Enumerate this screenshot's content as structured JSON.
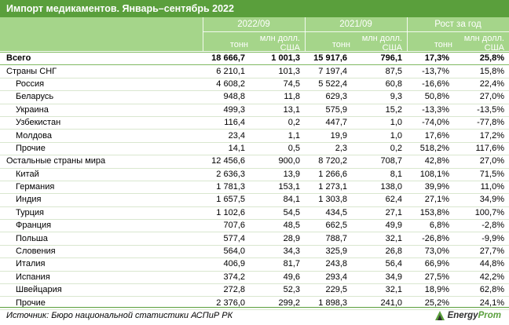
{
  "title": "Импорт медикаментов. Январь–сентябрь 2022",
  "header": {
    "groups": [
      "2022/09",
      "2021/09",
      "Рост за год"
    ],
    "units": {
      "tonnes": "тонн",
      "mln_line1": "млн долл.",
      "mln_line2": "США"
    }
  },
  "rows": [
    {
      "label": "Всего",
      "v": [
        "18 666,7",
        "1 001,3",
        "15 917,6",
        "796,1",
        "17,3%",
        "25,8%"
      ],
      "style": "bold"
    },
    {
      "label": "Страны СНГ",
      "v": [
        "6 210,1",
        "101,3",
        "7 197,4",
        "87,5",
        "-13,7%",
        "15,8%"
      ],
      "style": "lvl1"
    },
    {
      "label": "Россия",
      "v": [
        "4 608,2",
        "74,5",
        "5 522,4",
        "60,8",
        "-16,6%",
        "22,4%"
      ],
      "style": "lvl2"
    },
    {
      "label": "Беларусь",
      "v": [
        "948,8",
        "11,8",
        "629,3",
        "9,3",
        "50,8%",
        "27,0%"
      ],
      "style": "lvl2"
    },
    {
      "label": "Украина",
      "v": [
        "499,3",
        "13,1",
        "575,9",
        "15,2",
        "-13,3%",
        "-13,5%"
      ],
      "style": "lvl2"
    },
    {
      "label": "Узбекистан",
      "v": [
        "116,4",
        "0,2",
        "447,7",
        "1,0",
        "-74,0%",
        "-77,8%"
      ],
      "style": "lvl2"
    },
    {
      "label": "Молдова",
      "v": [
        "23,4",
        "1,1",
        "19,9",
        "1,0",
        "17,6%",
        "17,2%"
      ],
      "style": "lvl2"
    },
    {
      "label": "Прочие",
      "v": [
        "14,1",
        "0,5",
        "2,3",
        "0,2",
        "518,2%",
        "117,6%"
      ],
      "style": "lvl2"
    },
    {
      "label": "Остальные страны мира",
      "v": [
        "12 456,6",
        "900,0",
        "8 720,2",
        "708,7",
        "42,8%",
        "27,0%"
      ],
      "style": "lvl1"
    },
    {
      "label": "Китай",
      "v": [
        "2 636,3",
        "13,9",
        "1 266,6",
        "8,1",
        "108,1%",
        "71,5%"
      ],
      "style": "lvl2"
    },
    {
      "label": "Германия",
      "v": [
        "1 781,3",
        "153,1",
        "1 273,1",
        "138,0",
        "39,9%",
        "11,0%"
      ],
      "style": "lvl2"
    },
    {
      "label": "Индия",
      "v": [
        "1 657,5",
        "84,1",
        "1 303,8",
        "62,4",
        "27,1%",
        "34,9%"
      ],
      "style": "lvl2"
    },
    {
      "label": "Турция",
      "v": [
        "1 102,6",
        "54,5",
        "434,5",
        "27,1",
        "153,8%",
        "100,7%"
      ],
      "style": "lvl2"
    },
    {
      "label": "Франция",
      "v": [
        "707,6",
        "48,5",
        "662,5",
        "49,9",
        "6,8%",
        "-2,8%"
      ],
      "style": "lvl2"
    },
    {
      "label": "Польша",
      "v": [
        "577,4",
        "28,9",
        "788,7",
        "32,1",
        "-26,8%",
        "-9,9%"
      ],
      "style": "lvl2"
    },
    {
      "label": "Словения",
      "v": [
        "564,0",
        "34,3",
        "325,9",
        "26,8",
        "73,0%",
        "27,7%"
      ],
      "style": "lvl2"
    },
    {
      "label": "Италия",
      "v": [
        "406,9",
        "81,7",
        "243,8",
        "56,4",
        "66,9%",
        "44,8%"
      ],
      "style": "lvl2"
    },
    {
      "label": "Испания",
      "v": [
        "374,2",
        "49,6",
        "293,4",
        "34,9",
        "27,5%",
        "42,2%"
      ],
      "style": "lvl2"
    },
    {
      "label": "Швейцария",
      "v": [
        "272,8",
        "52,3",
        "229,5",
        "32,1",
        "18,9%",
        "62,8%"
      ],
      "style": "lvl2"
    },
    {
      "label": "Прочие",
      "v": [
        "2 376,0",
        "299,2",
        "1 898,3",
        "241,0",
        "25,2%",
        "24,1%"
      ],
      "style": "lvl2"
    }
  ],
  "source": "Источник: Бюро национальной статистики АСПиР РК",
  "logo": {
    "icon": "energyprom-logo-icon",
    "text_a": "Energy",
    "text_b": "Prom"
  }
}
